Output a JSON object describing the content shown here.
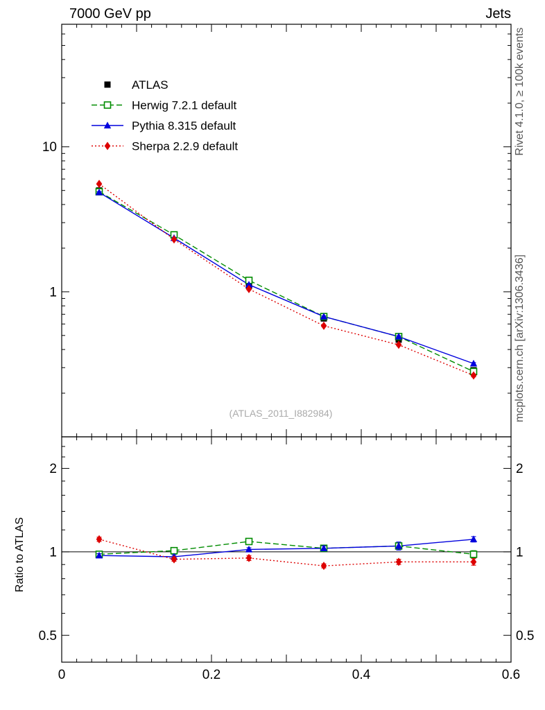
{
  "titles": {
    "top_left": "7000 GeV pp",
    "top_right": "Jets",
    "rivet_side": "Rivet 4.1.0, ≥ 100k events",
    "mcplots_side": "mcplots.cern.ch [arXiv:1306.3436]",
    "ratio_axis": "Ratio to ATLAS",
    "watermark": "(ATLAS_2011_I882984)"
  },
  "chart_data": {
    "type": "line",
    "title": "7000 GeV pp — Jets",
    "x": [
      0.05,
      0.15,
      0.25,
      0.35,
      0.45,
      0.55
    ],
    "xlim": [
      0,
      0.6
    ],
    "xticks_major": [
      0,
      0.1,
      0.2,
      0.3,
      0.4,
      0.5,
      0.6
    ],
    "xticks_minor": [
      0.02,
      0.04,
      0.06,
      0.08,
      0.12,
      0.14,
      0.16,
      0.18,
      0.22,
      0.24,
      0.26,
      0.28,
      0.32,
      0.34,
      0.36,
      0.38,
      0.42,
      0.44,
      0.46,
      0.48,
      0.52,
      0.54,
      0.56,
      0.58
    ],
    "xtick_labels": [
      {
        "v": 0,
        "label": "0"
      },
      {
        "v": 0.2,
        "label": "0.2"
      },
      {
        "v": 0.4,
        "label": "0.4"
      },
      {
        "v": 0.6,
        "label": "0.6"
      }
    ],
    "main_panel": {
      "yscale": "log",
      "ylim": [
        0.1,
        70
      ],
      "yticks_major": [
        1,
        10
      ],
      "yticks_minor": [
        0.2,
        0.3,
        0.4,
        0.5,
        0.6,
        0.7,
        0.8,
        0.9,
        2,
        3,
        4,
        5,
        6,
        7,
        8,
        9,
        20,
        30,
        40,
        50,
        60
      ],
      "ytick_labels": [
        {
          "v": 1,
          "label": "1"
        },
        {
          "v": 10,
          "label": "10"
        }
      ],
      "labels_both_sides": false,
      "series": [
        {
          "id": "atlas",
          "name": "ATLAS",
          "color": "#000000",
          "marker": "square-filled",
          "line": "none",
          "values": [
            5.0,
            2.45,
            1.1,
            0.655,
            0.468,
            0.288
          ],
          "errors": [
            0.15,
            0.07,
            0.03,
            0.018,
            0.013,
            0.009
          ]
        },
        {
          "id": "herwig",
          "name": "Herwig 7.2.1 default",
          "color": "#008c00",
          "marker": "square-open",
          "line": "dashed",
          "values": [
            4.9,
            2.47,
            1.2,
            0.675,
            0.491,
            0.282
          ],
          "errors": [
            0.05,
            0.025,
            0.012,
            0.007,
            0.006,
            0.005
          ]
        },
        {
          "id": "pythia",
          "name": "Pythia 8.315 default",
          "color": "#0000dd",
          "marker": "triangle-filled",
          "line": "solid",
          "values": [
            4.85,
            2.35,
            1.12,
            0.675,
            0.491,
            0.32
          ],
          "errors": [
            0.05,
            0.025,
            0.012,
            0.007,
            0.006,
            0.005
          ]
        },
        {
          "id": "sherpa",
          "name": "Sherpa 2.2.9 default",
          "color": "#dd0000",
          "marker": "diamond-filled",
          "line": "dotted",
          "values": [
            5.55,
            2.3,
            1.045,
            0.583,
            0.431,
            0.265
          ],
          "errors": [
            0.07,
            0.03,
            0.015,
            0.008,
            0.007,
            0.006
          ]
        }
      ]
    },
    "ratio_panel": {
      "yscale": "log",
      "ylim": [
        0.4,
        2.6
      ],
      "yticks_major": [
        0.5,
        1,
        2
      ],
      "yticks_minor": [
        0.6,
        0.7,
        0.8,
        0.9,
        1.2,
        1.4,
        1.6,
        1.8,
        2.2,
        2.4
      ],
      "ytick_labels": [
        {
          "v": 0.5,
          "label": "0.5"
        },
        {
          "v": 1,
          "label": "1"
        },
        {
          "v": 2,
          "label": "2"
        }
      ],
      "labels_both_sides": true,
      "reference_line": 1,
      "series": [
        {
          "id": "herwig",
          "name": "Herwig 7.2.1 default",
          "color": "#008c00",
          "marker": "square-open",
          "line": "dashed",
          "values": [
            0.98,
            1.01,
            1.09,
            1.03,
            1.05,
            0.98
          ],
          "errors": [
            0.015,
            0.015,
            0.02,
            0.02,
            0.025,
            0.03
          ]
        },
        {
          "id": "pythia",
          "name": "Pythia 8.315 default",
          "color": "#0000dd",
          "marker": "triangle-filled",
          "line": "solid",
          "values": [
            0.97,
            0.96,
            1.02,
            1.03,
            1.05,
            1.11
          ],
          "errors": [
            0.015,
            0.015,
            0.015,
            0.02,
            0.035,
            0.025
          ]
        },
        {
          "id": "sherpa",
          "name": "Sherpa 2.2.9 default",
          "color": "#dd0000",
          "marker": "diamond-filled",
          "line": "dotted",
          "values": [
            1.11,
            0.94,
            0.95,
            0.89,
            0.92,
            0.92
          ],
          "errors": [
            0.02,
            0.015,
            0.02,
            0.015,
            0.02,
            0.025
          ]
        }
      ]
    }
  }
}
